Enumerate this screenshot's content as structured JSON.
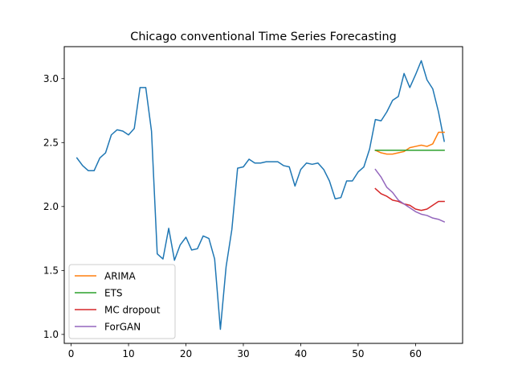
{
  "chart_data": {
    "type": "line",
    "title": "Chicago conventional Time Series Forecasting",
    "xlabel": "",
    "ylabel": "",
    "xlim": [
      -1.2,
      68.2
    ],
    "ylim": [
      0.93,
      3.25
    ],
    "xticks": [
      0,
      10,
      20,
      30,
      40,
      50,
      60
    ],
    "yticks": [
      1.0,
      1.5,
      2.0,
      2.5,
      3.0
    ],
    "ytick_labels": [
      "1.0",
      "1.5",
      "2.0",
      "2.5",
      "3.0"
    ],
    "grid": false,
    "legend_position": "lower-left",
    "series": [
      {
        "name": "",
        "color": "#1f77b4",
        "x": [
          1,
          2,
          3,
          4,
          5,
          6,
          7,
          8,
          9,
          10,
          11,
          12,
          13,
          14,
          15,
          16,
          17,
          18,
          19,
          20,
          21,
          22,
          23,
          24,
          25,
          26,
          27,
          28,
          29,
          30,
          31,
          32,
          33,
          34,
          35,
          36,
          37,
          38,
          39,
          40,
          41,
          42,
          43,
          44,
          45,
          46,
          47,
          48,
          49,
          50,
          51,
          52,
          53,
          54,
          55,
          56,
          57,
          58,
          59,
          60,
          61,
          62,
          63,
          64,
          65
        ],
        "y": [
          2.38,
          2.32,
          2.28,
          2.28,
          2.38,
          2.42,
          2.56,
          2.6,
          2.59,
          2.56,
          2.61,
          2.93,
          2.93,
          2.59,
          1.63,
          1.59,
          1.83,
          1.58,
          1.7,
          1.76,
          1.66,
          1.67,
          1.77,
          1.75,
          1.59,
          1.04,
          1.53,
          1.82,
          2.3,
          2.31,
          2.37,
          2.34,
          2.34,
          2.35,
          2.35,
          2.35,
          2.32,
          2.31,
          2.16,
          2.29,
          2.34,
          2.33,
          2.34,
          2.29,
          2.2,
          2.06,
          2.07,
          2.2,
          2.2,
          2.27,
          2.31,
          2.45,
          2.68,
          2.67,
          2.74,
          2.83,
          2.86,
          3.04,
          2.93,
          3.03,
          3.14,
          2.99,
          2.92,
          2.74,
          2.51
        ]
      },
      {
        "name": "ARIMA",
        "color": "#ff7f0e",
        "x": [
          53,
          54,
          55,
          56,
          57,
          58,
          59,
          60,
          61,
          62,
          63,
          64,
          65
        ],
        "y": [
          2.44,
          2.42,
          2.41,
          2.41,
          2.42,
          2.43,
          2.46,
          2.47,
          2.48,
          2.47,
          2.49,
          2.58,
          2.58
        ]
      },
      {
        "name": "ETS",
        "color": "#2ca02c",
        "x": [
          53,
          65
        ],
        "y": [
          2.44,
          2.44
        ]
      },
      {
        "name": "MC dropout",
        "color": "#d62728",
        "x": [
          53,
          54,
          55,
          56,
          57,
          58,
          59,
          60,
          61,
          62,
          63,
          64,
          65
        ],
        "y": [
          2.14,
          2.1,
          2.08,
          2.05,
          2.04,
          2.02,
          2.01,
          1.98,
          1.97,
          1.98,
          2.01,
          2.04,
          2.04
        ]
      },
      {
        "name": "ForGAN",
        "color": "#9467bd",
        "x": [
          53,
          54,
          55,
          56,
          57,
          58,
          59,
          60,
          61,
          62,
          63,
          64,
          65
        ],
        "y": [
          2.29,
          2.23,
          2.15,
          2.11,
          2.05,
          2.02,
          1.99,
          1.96,
          1.94,
          1.93,
          1.91,
          1.9,
          1.88
        ]
      }
    ]
  }
}
